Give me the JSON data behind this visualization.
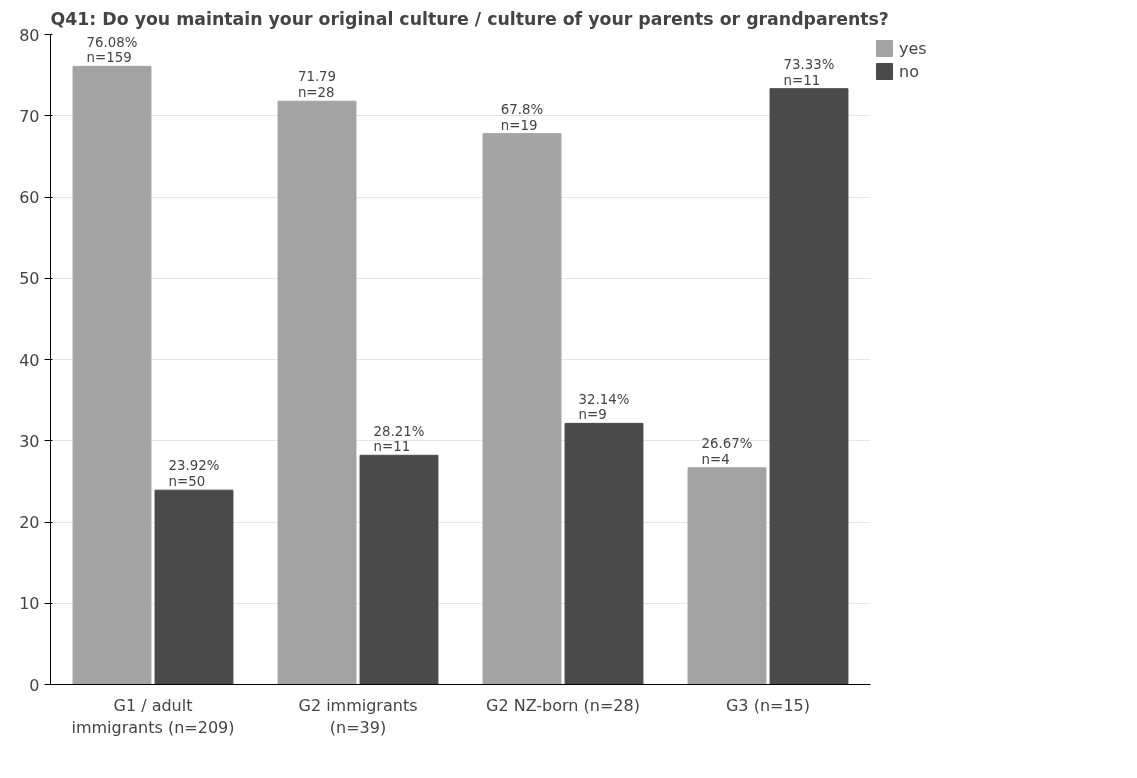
{
  "chart_data": {
    "type": "bar",
    "title": "Q41: Do you maintain your original culture / culture of your parents or grandparents?",
    "categories": [
      "G1 / adult\nimmigrants (n=209)",
      "G2 immigrants\n(n=39)",
      "G2 NZ-born (n=28)",
      "G3 (n=15)"
    ],
    "series": [
      {
        "name": "yes",
        "color": "#a3a3a3",
        "values": [
          76.08,
          71.79,
          67.8,
          26.67
        ],
        "value_labels": [
          "76.08%\nn=159",
          "71.79\nn=28",
          "67.8%\nn=19",
          "26.67%\nn=4"
        ]
      },
      {
        "name": "no",
        "color": "#4a4a4a",
        "values": [
          23.92,
          28.21,
          32.14,
          73.33
        ],
        "value_labels": [
          "23.92%\nn=50",
          "28.21%\nn=11",
          "32.14%\nn=9",
          "73.33%\nn=11"
        ]
      }
    ],
    "ylim": [
      0,
      80
    ],
    "yticks": [
      0,
      10,
      20,
      30,
      40,
      50,
      60,
      70,
      80
    ],
    "grid": "y",
    "legend": "top right"
  }
}
